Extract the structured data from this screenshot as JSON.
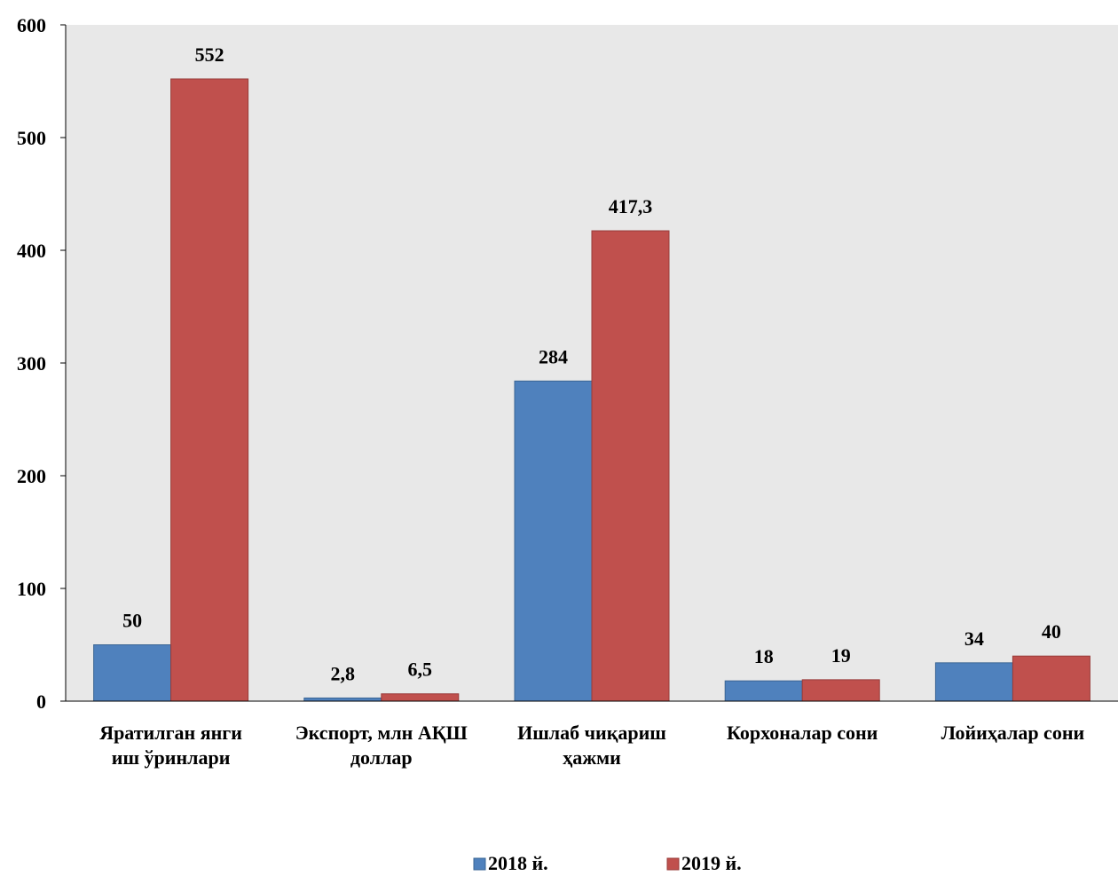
{
  "chart_data": {
    "type": "bar",
    "categories": [
      [
        "Яратилган янги",
        "иш ўринлари"
      ],
      [
        "Экспорт, млн АҚШ",
        "доллар"
      ],
      [
        "Ишлаб чиқариш",
        "ҳажми"
      ],
      [
        "Корхоналар сони"
      ],
      [
        "Лойиҳалар сони"
      ]
    ],
    "series": [
      {
        "name": "2018 й.",
        "color": "#4F81BD",
        "values": [
          50,
          2.8,
          284,
          18,
          34
        ],
        "labels": [
          "50",
          "2,8",
          "284",
          "18",
          "34"
        ]
      },
      {
        "name": "2019 й.",
        "color": "#C0504D",
        "values": [
          552,
          6.5,
          417.3,
          19,
          40
        ],
        "labels": [
          "552",
          "6,5",
          "417,3",
          "19",
          "40"
        ]
      }
    ],
    "ylim": [
      0,
      600
    ],
    "yticks": [
      "0",
      "100",
      "200",
      "300",
      "400",
      "500",
      "600"
    ],
    "grid": false,
    "legend_position": "bottom",
    "plot_background": "#E8E8E8"
  }
}
